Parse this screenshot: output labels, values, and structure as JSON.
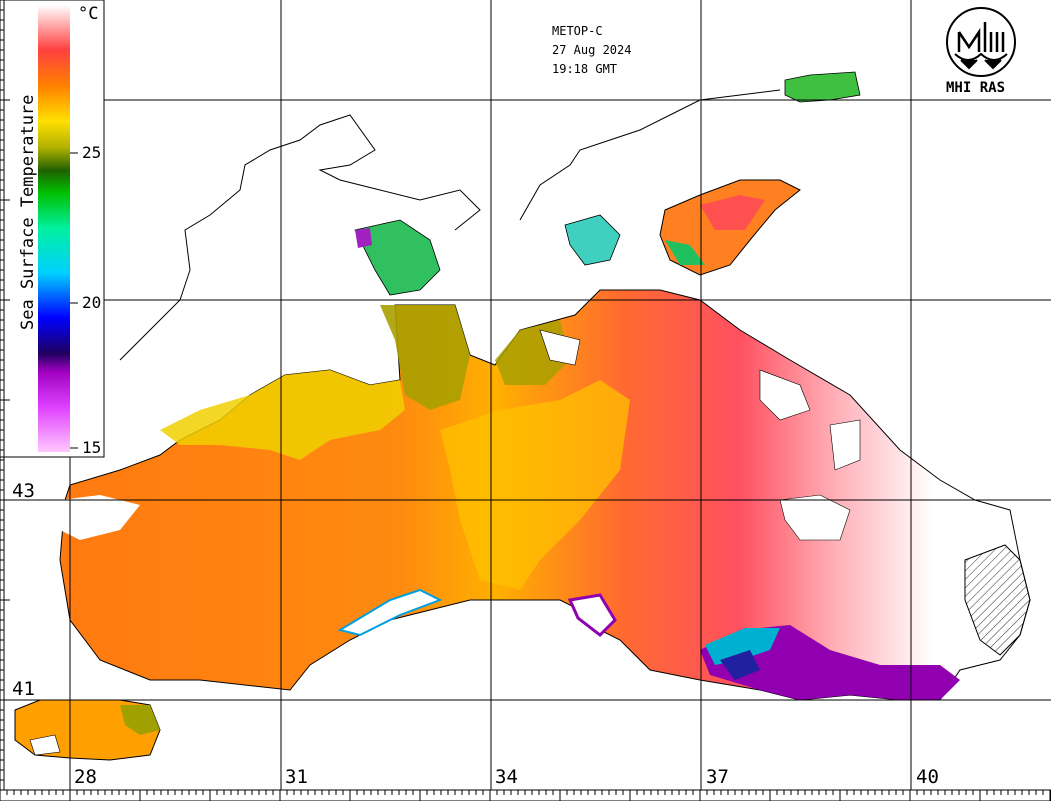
{
  "info": {
    "satellite": "METOP-C",
    "date": "27 Aug 2024",
    "time": "19:18 GMT"
  },
  "logo": {
    "text": "MHI RAS",
    "icon": "mhi-ras-logo-icon"
  },
  "scale": {
    "title": "Sea Surface Temperature",
    "unit": "°C",
    "ticks": [
      "15",
      "20",
      "25"
    ],
    "min": 15,
    "max": 30,
    "colors": {
      "c15": "#ffc8ff",
      "c17": "#a000c0",
      "c18": "#200060",
      "c19": "#0000ff",
      "c21": "#00e0e0",
      "c23": "#00c000",
      "c24": "#206000",
      "c25": "#b0b000",
      "c26": "#ffe000",
      "c27": "#ff8000",
      "c28": "#ff4040",
      "c29": "#ff8080",
      "c30": "#ffffff"
    }
  },
  "axes": {
    "longitude_labels": [
      "28",
      "31",
      "34",
      "37",
      "40"
    ],
    "latitude_labels": [
      "43",
      "41"
    ]
  }
}
